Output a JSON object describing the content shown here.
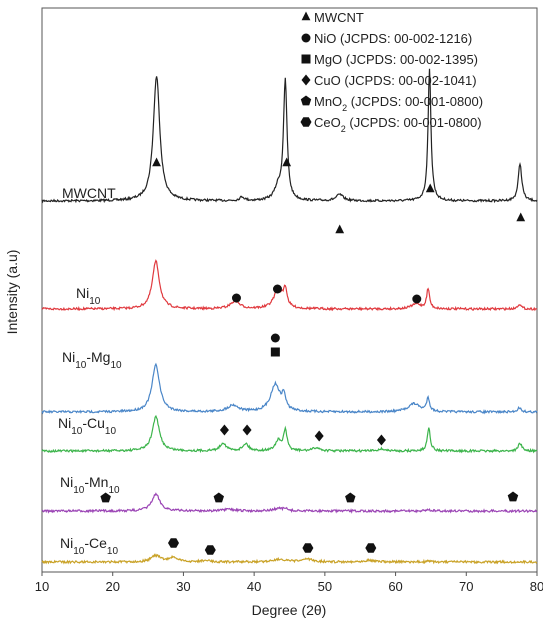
{
  "chart_data": {
    "type": "line",
    "title": "",
    "xlabel": "Degree (2θ)",
    "ylabel": "Intensity (a.u)",
    "xlim": [
      10,
      80
    ],
    "xticks": [
      10,
      20,
      30,
      40,
      50,
      60,
      70,
      80
    ],
    "grid": false,
    "legend_position": "top-right",
    "legend": [
      {
        "marker": "triangle",
        "label": "MWCNT"
      },
      {
        "marker": "circle",
        "label": "NiO (JCPDS: 00-002-1216)"
      },
      {
        "marker": "square",
        "label": "MgO (JCPDS: 00-002-1395)"
      },
      {
        "marker": "diamond",
        "label": "CuO (JCPDS: 00-002-1041)"
      },
      {
        "marker": "pentagon",
        "label": "MnO",
        "sub": "2",
        "tail": " (JCPDS: 00-001-0800)"
      },
      {
        "marker": "hexagon",
        "label": "CeO",
        "sub": "2",
        "tail": " (JCPDS: 00-001-0800)"
      }
    ],
    "series": [
      {
        "name": "MWCNT",
        "label_parts": [
          {
            "t": "MWCNT"
          }
        ],
        "color": "#222222",
        "peaks": [
          [
            26.2,
            1.0,
            0.55
          ],
          [
            38.3,
            0.03,
            0.4
          ],
          [
            43.4,
            0.1,
            0.6
          ],
          [
            44.4,
            0.95,
            0.3
          ],
          [
            52.1,
            0.05,
            0.6
          ],
          [
            64.8,
            1.05,
            0.25
          ],
          [
            77.6,
            0.3,
            0.3
          ]
        ],
        "markers": [
          {
            "shape": "triangle",
            "x": 26.2
          },
          {
            "shape": "triangle",
            "x": 44.6
          },
          {
            "shape": "triangle",
            "x": 52.1
          },
          {
            "shape": "triangle",
            "x": 64.9
          },
          {
            "shape": "triangle",
            "x": 77.7
          }
        ]
      },
      {
        "name": "Ni10",
        "label_parts": [
          {
            "t": "Ni"
          },
          {
            "t": "10",
            "sub": true
          }
        ],
        "color": "#e0393e",
        "peaks": [
          [
            26.1,
            0.95,
            0.6
          ],
          [
            37.3,
            0.15,
            0.8
          ],
          [
            43.4,
            0.4,
            0.7
          ],
          [
            44.4,
            0.35,
            0.3
          ],
          [
            62.9,
            0.1,
            0.8
          ],
          [
            64.6,
            0.4,
            0.25
          ],
          [
            77.5,
            0.1,
            0.3
          ]
        ],
        "markers": [
          {
            "shape": "circle",
            "x": 37.5
          },
          {
            "shape": "circle",
            "x": 43.3
          },
          {
            "shape": "circle",
            "x": 63.0
          }
        ]
      },
      {
        "name": "Ni10-Mg10",
        "label_parts": [
          {
            "t": "Ni"
          },
          {
            "t": "10",
            "sub": true
          },
          {
            "t": "-Mg"
          },
          {
            "t": "10",
            "sub": true
          }
        ],
        "color": "#4a86c8",
        "peaks": [
          [
            26.1,
            0.85,
            0.65
          ],
          [
            37.0,
            0.12,
            0.9
          ],
          [
            43.0,
            0.5,
            0.8
          ],
          [
            44.2,
            0.25,
            0.3
          ],
          [
            62.6,
            0.15,
            1.0
          ],
          [
            64.6,
            0.25,
            0.25
          ],
          [
            77.5,
            0.08,
            0.3
          ]
        ],
        "markers": [
          {
            "shape": "square",
            "x": 43.0,
            "stack": 1
          },
          {
            "shape": "circle",
            "x": 43.0
          }
        ]
      },
      {
        "name": "Ni10-Cu10",
        "label_parts": [
          {
            "t": "Ni"
          },
          {
            "t": "10",
            "sub": true
          },
          {
            "t": "-Cu"
          },
          {
            "t": "10",
            "sub": true
          }
        ],
        "color": "#3cb44b",
        "peaks": [
          [
            26.1,
            0.85,
            0.6
          ],
          [
            35.6,
            0.2,
            0.5
          ],
          [
            38.8,
            0.18,
            0.5
          ],
          [
            43.4,
            0.25,
            0.5
          ],
          [
            44.4,
            0.5,
            0.3
          ],
          [
            48.8,
            0.08,
            0.6
          ],
          [
            58.0,
            0.05,
            0.6
          ],
          [
            64.7,
            0.6,
            0.25
          ],
          [
            77.6,
            0.2,
            0.3
          ]
        ],
        "markers": [
          {
            "shape": "diamond",
            "x": 35.8
          },
          {
            "shape": "diamond",
            "x": 39.0
          },
          {
            "shape": "diamond",
            "x": 49.2
          },
          {
            "shape": "diamond",
            "x": 58.0
          }
        ]
      },
      {
        "name": "Ni10-Mn10",
        "label_parts": [
          {
            "t": "Ni"
          },
          {
            "t": "10",
            "sub": true
          },
          {
            "t": "-Mn"
          },
          {
            "t": "10",
            "sub": true
          }
        ],
        "color": "#9b45b5",
        "peaks": [
          [
            26.1,
            0.55,
            0.7
          ],
          [
            36.5,
            0.05,
            1.0
          ],
          [
            43.4,
            0.08,
            0.8
          ],
          [
            44.4,
            0.06,
            0.4
          ],
          [
            64.6,
            0.05,
            0.4
          ]
        ],
        "markers": [
          {
            "shape": "pentagon",
            "x": 19.0
          },
          {
            "shape": "pentagon",
            "x": 35.0
          },
          {
            "shape": "pentagon",
            "x": 53.6
          },
          {
            "shape": "pentagon",
            "x": 76.6
          }
        ]
      },
      {
        "name": "Ni10-Ce10",
        "label_parts": [
          {
            "t": "Ni"
          },
          {
            "t": "10",
            "sub": true
          },
          {
            "t": "-Ce"
          },
          {
            "t": "10",
            "sub": true
          }
        ],
        "color": "#c9a227",
        "peaks": [
          [
            26.1,
            0.35,
            0.8
          ],
          [
            28.6,
            0.25,
            0.7
          ],
          [
            33.1,
            0.08,
            0.8
          ],
          [
            43.4,
            0.15,
            1.0
          ],
          [
            47.5,
            0.15,
            1.0
          ],
          [
            56.3,
            0.1,
            1.0
          ],
          [
            64.7,
            0.05,
            0.4
          ]
        ],
        "markers": [
          {
            "shape": "hexagon",
            "x": 28.6
          },
          {
            "shape": "hexagon",
            "x": 33.8
          },
          {
            "shape": "hexagon",
            "x": 47.6
          },
          {
            "shape": "hexagon",
            "x": 56.5
          }
        ]
      }
    ]
  }
}
